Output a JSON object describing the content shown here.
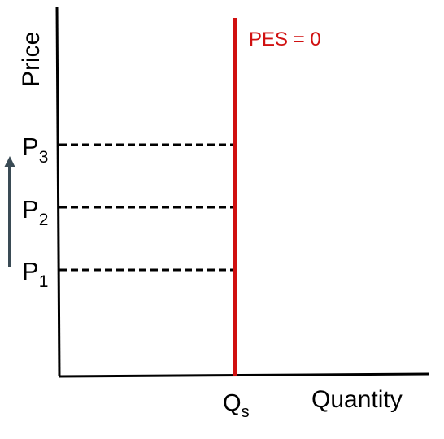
{
  "axes": {
    "y_label": "Price",
    "x_label": "Quantity"
  },
  "price_levels": [
    {
      "letter": "P",
      "subscript": "3"
    },
    {
      "letter": "P",
      "subscript": "2"
    },
    {
      "letter": "P",
      "subscript": "1"
    }
  ],
  "quantity_mark": {
    "letter": "Q",
    "subscript": "s"
  },
  "supply_curve": {
    "label": "PES = 0"
  }
}
